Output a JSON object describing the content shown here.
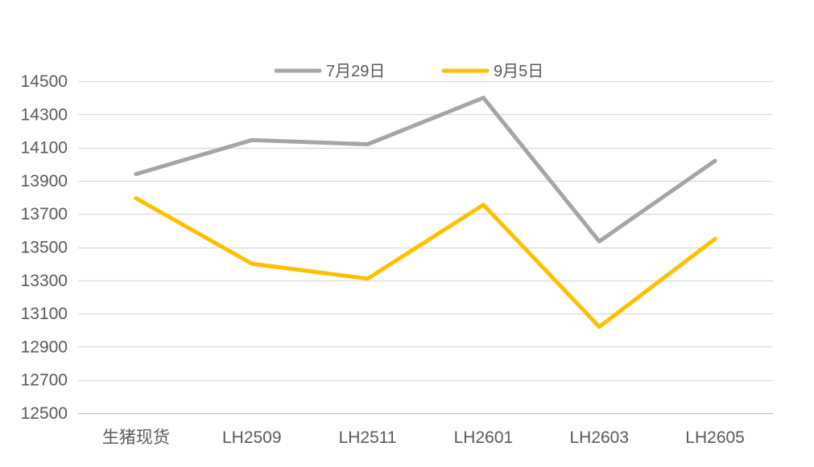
{
  "chart_data": {
    "type": "line",
    "title": "",
    "xlabel": "",
    "ylabel": "",
    "categories": [
      "生猪现货",
      "LH2509",
      "LH2511",
      "LH2601",
      "LH2603",
      "LH2605"
    ],
    "series": [
      {
        "name": "7月29日",
        "color": "#A5A5A5",
        "values": [
          13940,
          14145,
          14120,
          14400,
          13535,
          14020
        ]
      },
      {
        "name": "9月5日",
        "color": "#FFC000",
        "values": [
          13795,
          13400,
          13310,
          13755,
          13020,
          13550
        ]
      }
    ],
    "ylim": [
      12500,
      14500
    ],
    "yticks": [
      12500,
      12700,
      12900,
      13100,
      13300,
      13500,
      13700,
      13900,
      14100,
      14300,
      14500
    ],
    "grid": true,
    "legend_position": "top"
  }
}
